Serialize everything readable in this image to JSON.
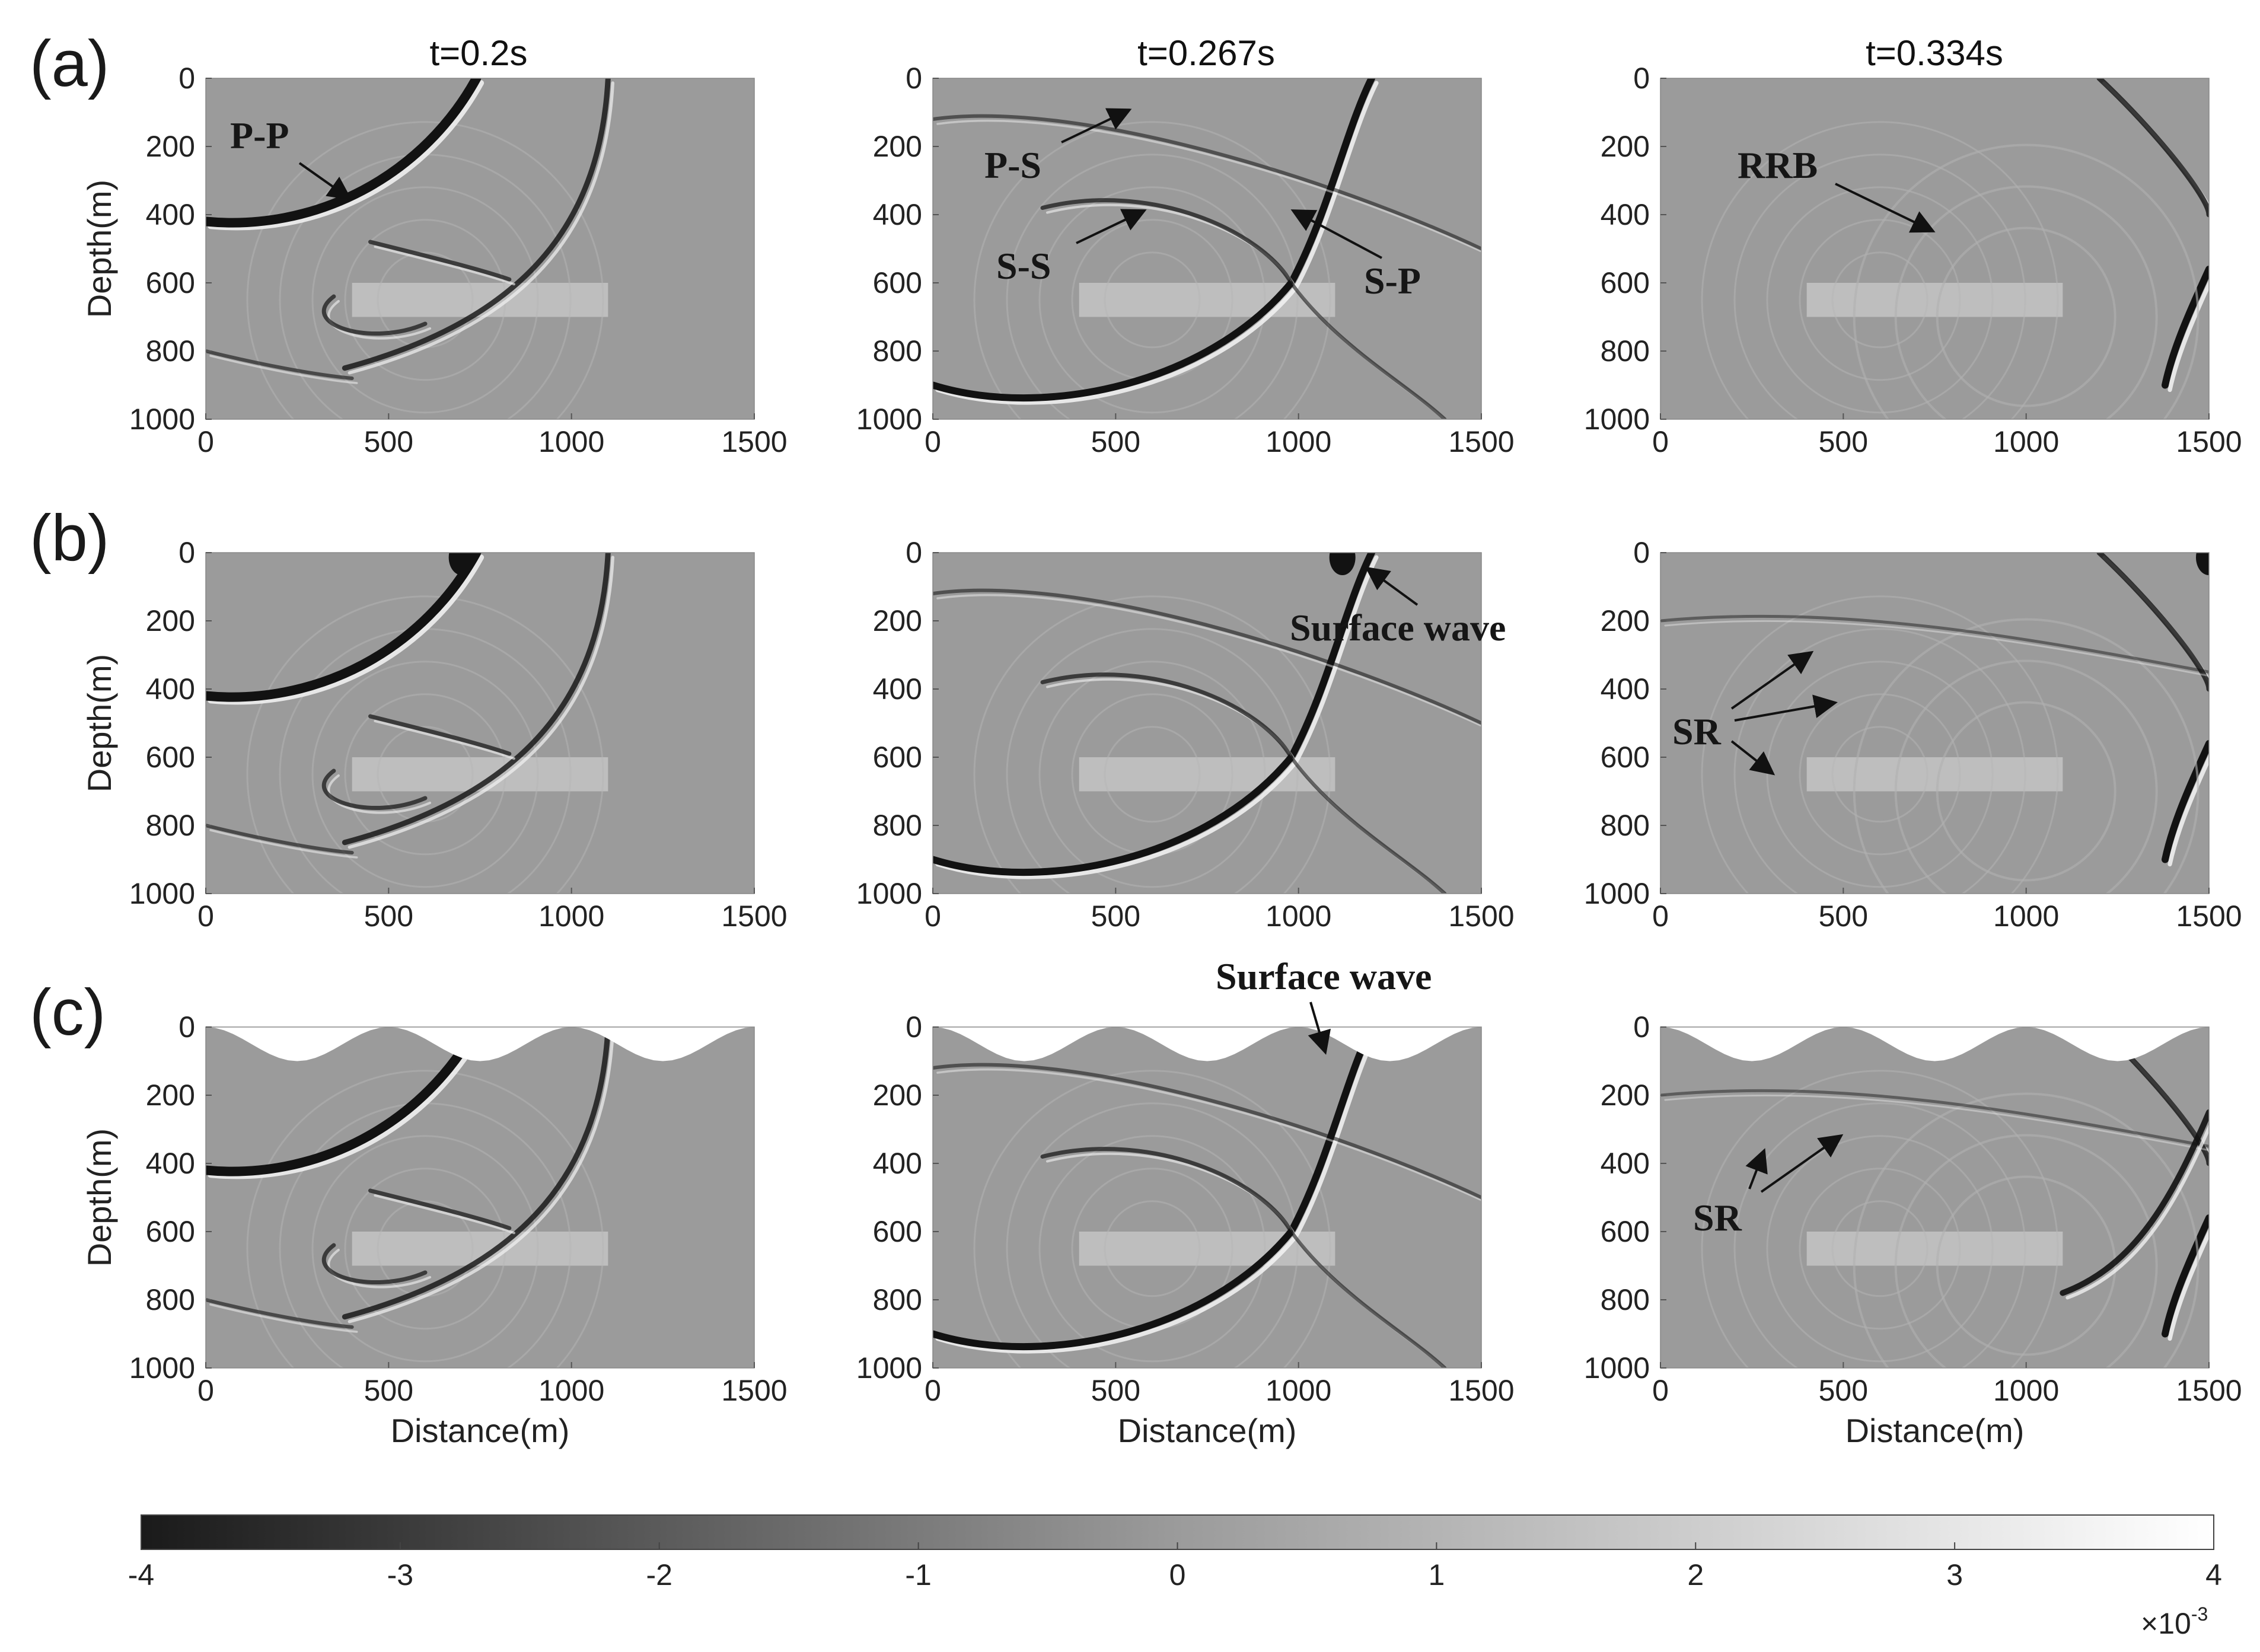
{
  "figure": {
    "rows": [
      {
        "label": "(a)"
      },
      {
        "label": "(b)"
      },
      {
        "label": "(c)"
      }
    ],
    "column_titles": [
      "t=0.2s",
      "t=0.267s",
      "t=0.334s"
    ],
    "axes": {
      "ylabel": "Depth(m)",
      "xlabel": "Distance(m)",
      "x_ticks": [
        "0",
        "500",
        "1000",
        "1500"
      ],
      "y_ticks": [
        "0",
        "200",
        "400",
        "600",
        "800",
        "1000"
      ],
      "x_range": [
        0,
        1500
      ],
      "y_range": [
        0,
        1000
      ]
    },
    "annotations": {
      "pp": "P-P",
      "ps": "P-S",
      "ss": "S-S",
      "sp": "S-P",
      "rrb": "RRB",
      "surface_wave_b": "Surface wave",
      "surface_wave_c": "Surface wave",
      "sr_b": "SR",
      "sr_c": "SR"
    },
    "colorbar": {
      "ticks": [
        "-4",
        "-3",
        "-2",
        "-1",
        "0",
        "1",
        "2",
        "3",
        "4"
      ],
      "range": [
        -4,
        4
      ],
      "multiplier_base": "×10",
      "multiplier_exp": "-3"
    },
    "colors": {
      "background": "#9b9b9b",
      "wave_dark": "#121212",
      "wave_light": "#f5f5f5",
      "inclusion": "#c4c4c4"
    }
  }
}
